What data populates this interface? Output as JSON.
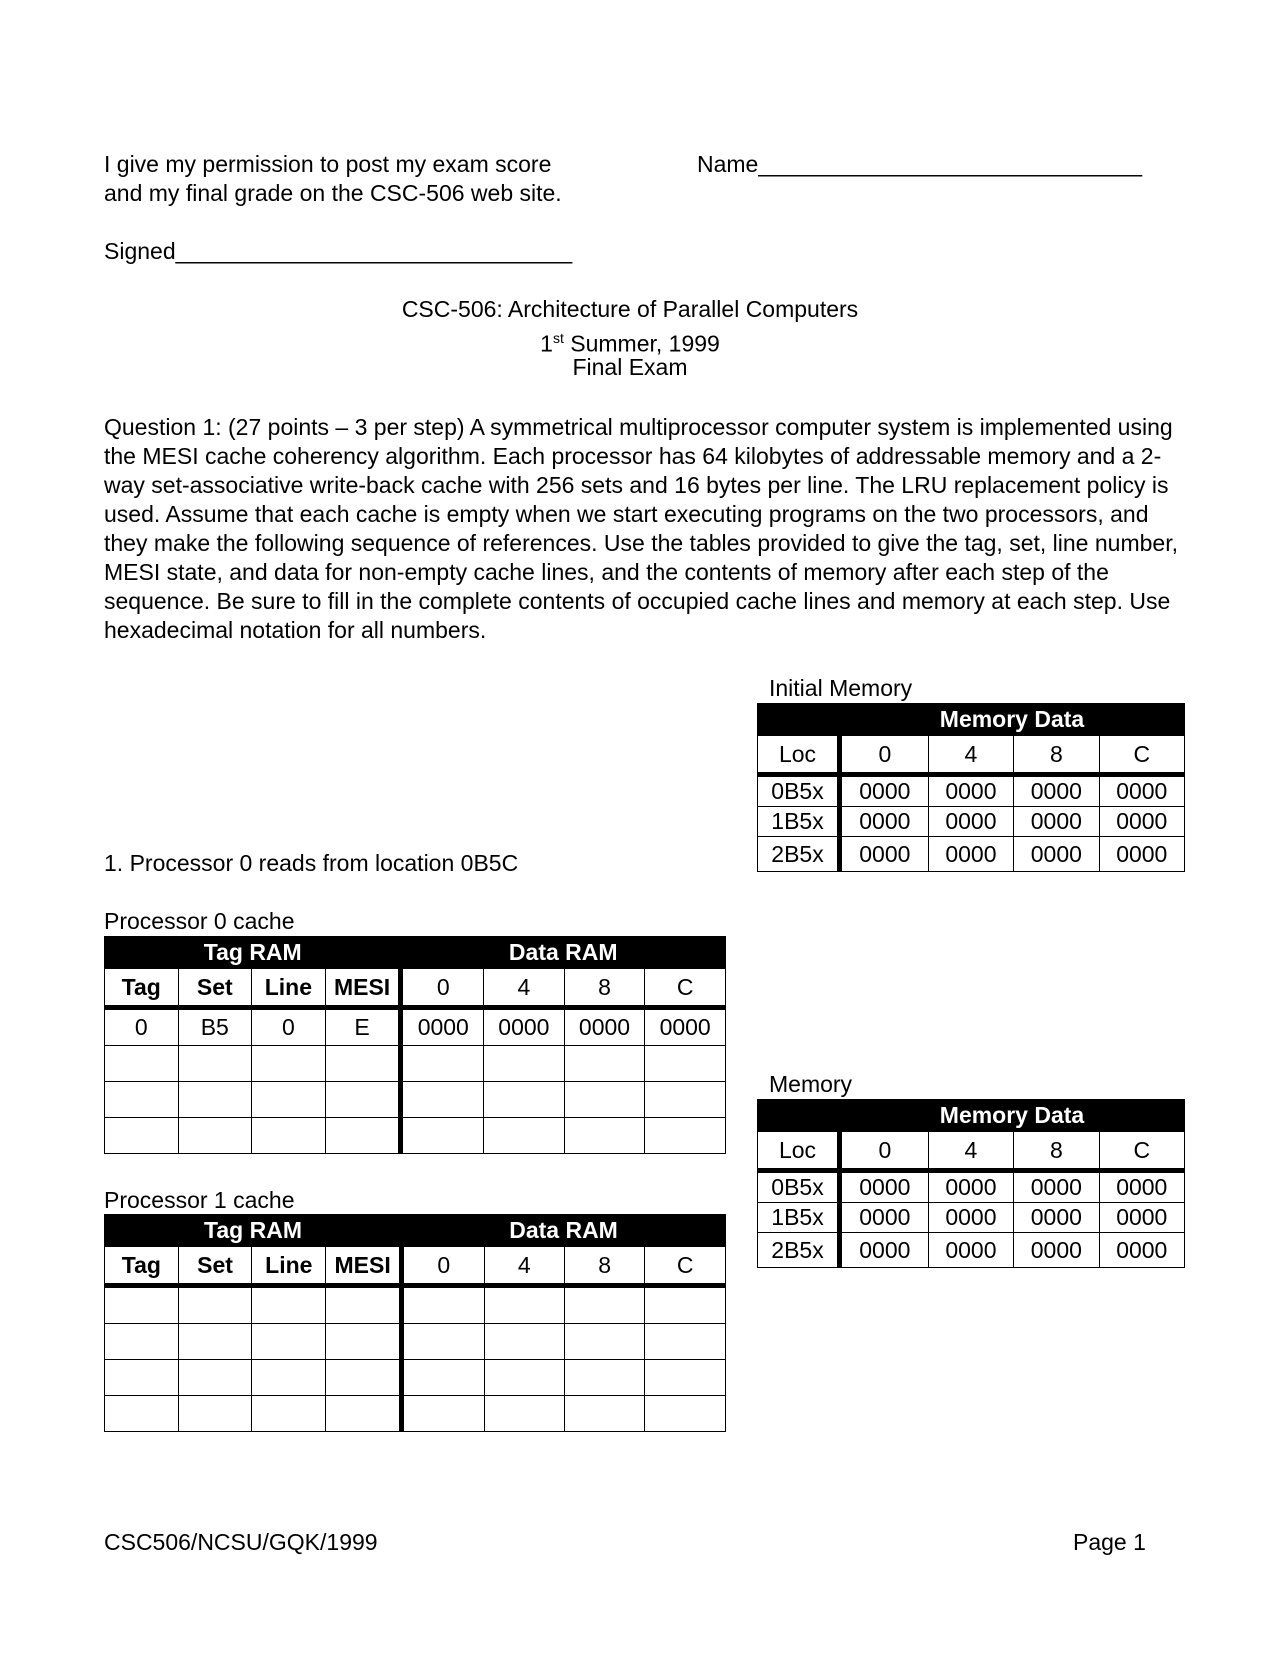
{
  "permission": {
    "line1": "I give my permission to post my exam score",
    "line2": "and my final grade on the CSC-506 web site.",
    "name_label": "Name______________________________",
    "signed_label": "Signed_______________________________"
  },
  "title": {
    "course": "CSC-506: Architecture of Parallel Computers",
    "term_ordinal": "1",
    "term_sup": "st",
    "term_rest": " Summer, 1999",
    "exam": "Final Exam"
  },
  "question": "Question 1: (27 points – 3 per step) A symmetrical multiprocessor computer system is implemented using the MESI cache coherency algorithm.  Each processor has 64 kilobytes of addressable memory and a 2-way set-associative write-back cache with 256 sets and 16 bytes per line.  The LRU replacement policy is used.  Assume that each cache is empty when we start executing programs on the two processors, and they make the following sequence of references.  Use the tables provided to give the tag, set, line number, MESI state, and data for non-empty cache lines, and the contents of memory after each step of the sequence.  Be sure to fill in the complete contents of occupied cache lines and memory at each step.  Use hexadecimal notation for all numbers.",
  "step1": "1. Processor 0 reads from location 0B5C",
  "initial_memory": {
    "label": "Initial Memory",
    "group": "Memory Data",
    "columns": [
      "Loc",
      "0",
      "4",
      "8",
      "C"
    ],
    "rows": [
      [
        "0B5x",
        "0000",
        "0000",
        "0000",
        "0000"
      ],
      [
        "1B5x",
        "0000",
        "0000",
        "0000",
        "0000"
      ],
      [
        "2B5x",
        "0000",
        "0000",
        "0000",
        "0000"
      ]
    ]
  },
  "memory": {
    "label": "Memory",
    "group": "Memory Data",
    "columns": [
      "Loc",
      "0",
      "4",
      "8",
      "C"
    ],
    "rows": [
      [
        "0B5x",
        "0000",
        "0000",
        "0000",
        "0000"
      ],
      [
        "1B5x",
        "0000",
        "0000",
        "0000",
        "0000"
      ],
      [
        "2B5x",
        "0000",
        "0000",
        "0000",
        "0000"
      ]
    ]
  },
  "proc0": {
    "label": "Processor 0 cache",
    "tag_group": "Tag RAM",
    "data_group": "Data RAM",
    "columns": [
      "Tag",
      "Set",
      "Line",
      "MESI",
      "0",
      "4",
      "8",
      "C"
    ],
    "rows": [
      [
        "0",
        "B5",
        "0",
        "E",
        "0000",
        "0000",
        "0000",
        "0000"
      ],
      [
        "",
        "",
        "",
        "",
        "",
        "",
        "",
        ""
      ],
      [
        "",
        "",
        "",
        "",
        "",
        "",
        "",
        ""
      ],
      [
        "",
        "",
        "",
        "",
        "",
        "",
        "",
        ""
      ]
    ]
  },
  "proc1": {
    "label": "Processor 1 cache",
    "tag_group": "Tag RAM",
    "data_group": "Data RAM",
    "columns": [
      "Tag",
      "Set",
      "Line",
      "MESI",
      "0",
      "4",
      "8",
      "C"
    ],
    "rows": [
      [
        "",
        "",
        "",
        "",
        "",
        "",
        "",
        ""
      ],
      [
        "",
        "",
        "",
        "",
        "",
        "",
        "",
        ""
      ],
      [
        "",
        "",
        "",
        "",
        "",
        "",
        "",
        ""
      ],
      [
        "",
        "",
        "",
        "",
        "",
        "",
        "",
        ""
      ]
    ]
  },
  "footer": {
    "left": "CSC506/NCSU/GQK/1999",
    "right": "Page 1"
  }
}
